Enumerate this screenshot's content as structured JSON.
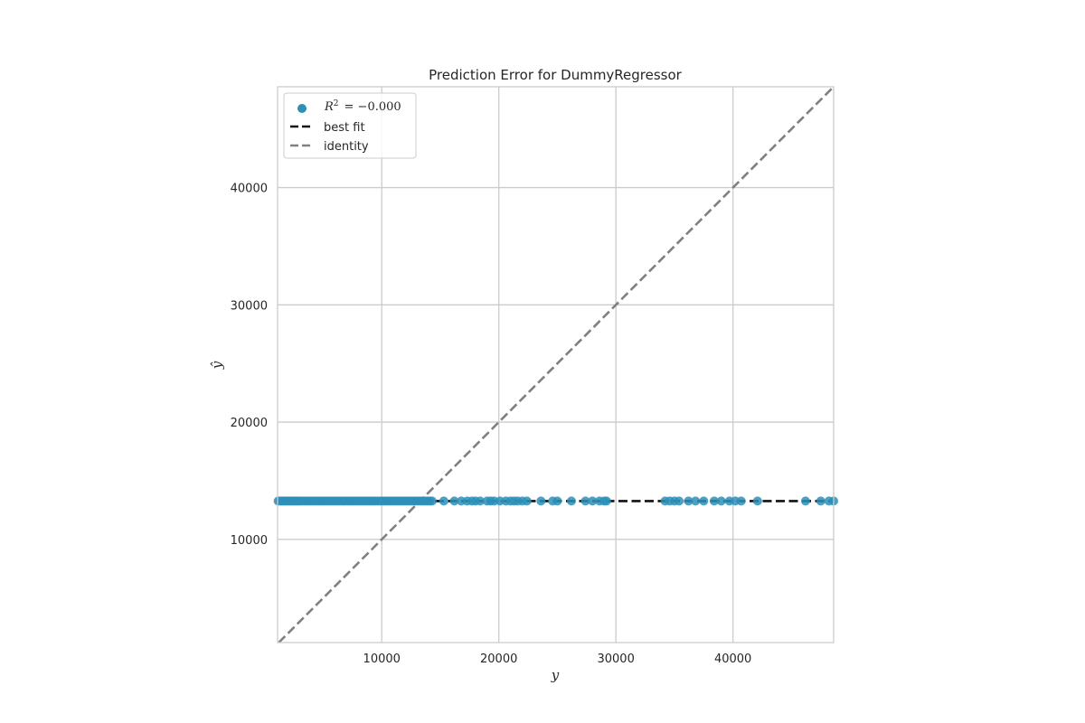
{
  "colors": {
    "points": "#2e8fb7",
    "best_fit": "#111111",
    "identity": "#808080",
    "grid": "#cccccc",
    "frame": "#cccccc"
  },
  "chart_data": {
    "type": "scatter",
    "title": "Prediction Error for DummyRegressor",
    "xlabel": "y",
    "ylabel": "ŷ",
    "xlim": [
      1100,
      48600
    ],
    "ylim": [
      1200,
      48600
    ],
    "x_ticks": [
      10000,
      20000,
      30000,
      40000
    ],
    "x_tick_labels": [
      "10000",
      "20000",
      "30000",
      "40000"
    ],
    "y_ticks": [
      10000,
      20000,
      30000,
      40000
    ],
    "y_tick_labels": [
      "10000",
      "20000",
      "30000",
      "40000"
    ],
    "grid": true,
    "legend_position": "top-left",
    "legend": {
      "r2_symbol": "R",
      "r2_superscript": "2",
      "r2_text": "= −0.000",
      "best_fit": "best fit",
      "identity": "identity"
    },
    "prediction_constant": 13270,
    "series": [
      {
        "kind": "scatter",
        "y_hat": 13270,
        "x": [
          1150,
          1300,
          1450,
          1600,
          1750,
          1900,
          2050,
          2200,
          2350,
          2500,
          2650,
          2800,
          2950,
          3100,
          3300,
          3500,
          3700,
          3900,
          4100,
          4300,
          4500,
          4700,
          4900,
          5100,
          5300,
          5500,
          5700,
          5900,
          6100,
          6300,
          6500,
          6700,
          6900,
          7100,
          7300,
          7500,
          7700,
          7900,
          8100,
          8300,
          8500,
          8700,
          8900,
          9100,
          9300,
          9500,
          9700,
          9900,
          10100,
          10300,
          10500,
          10700,
          10900,
          11100,
          11300,
          11500,
          11700,
          11900,
          12100,
          12300,
          12500,
          12700,
          12900,
          13100,
          13300,
          13500,
          13700,
          13900,
          14100,
          14300,
          15300,
          16200,
          16800,
          17300,
          17700,
          18000,
          18400,
          19000,
          19300,
          19600,
          20100,
          20600,
          21000,
          21300,
          21600,
          22000,
          22400,
          23600,
          24600,
          25000,
          26200,
          27400,
          28000,
          28600,
          29000,
          29200,
          34200,
          34600,
          35000,
          35400,
          36200,
          36800,
          37500,
          38400,
          39000,
          39700,
          40200,
          40700,
          42100,
          46200,
          47500,
          48200,
          48600
        ]
      }
    ],
    "lines": [
      {
        "name": "best fit",
        "from": [
          1100,
          13270
        ],
        "to": [
          48600,
          13270
        ]
      },
      {
        "name": "identity",
        "from": [
          1100,
          1100
        ],
        "to": [
          48600,
          48600
        ]
      }
    ]
  }
}
